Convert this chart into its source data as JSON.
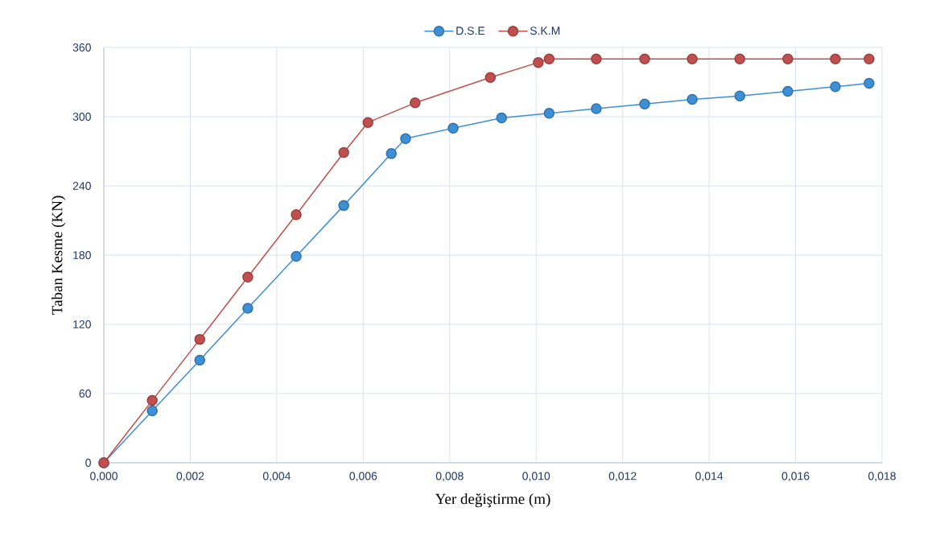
{
  "chart_data": {
    "type": "line",
    "xlabel": "Yer değiştirme (m)",
    "ylabel": "Taban Kesme (KN)",
    "xlim": [
      0,
      0.018
    ],
    "ylim": [
      0,
      360
    ],
    "xticks": [
      {
        "value": 0,
        "label": "0,000"
      },
      {
        "value": 0.002,
        "label": "0,002"
      },
      {
        "value": 0.004,
        "label": "0,004"
      },
      {
        "value": 0.006,
        "label": "0,006"
      },
      {
        "value": 0.008,
        "label": "0,008"
      },
      {
        "value": 0.01,
        "label": "0,010"
      },
      {
        "value": 0.012,
        "label": "0,012"
      },
      {
        "value": 0.014,
        "label": "0,014"
      },
      {
        "value": 0.016,
        "label": "0,016"
      },
      {
        "value": 0.018,
        "label": "0,018"
      }
    ],
    "yticks": [
      0,
      60,
      120,
      180,
      240,
      300,
      360
    ],
    "grid": true,
    "legend": "top",
    "marker": "circle",
    "line_style": "solid",
    "series": [
      {
        "name": "D.S.E",
        "color": "#3d8fd6",
        "x": [
          0,
          0.00112,
          0.00222,
          0.00333,
          0.00445,
          0.00555,
          0.00665,
          0.00698,
          0.00808,
          0.0092,
          0.0103,
          0.01139,
          0.01251,
          0.01361,
          0.01471,
          0.01582,
          0.01692,
          0.0177
        ],
        "values": [
          0,
          45,
          89,
          134,
          179,
          223,
          268,
          281,
          290,
          299,
          303,
          307,
          311,
          315,
          318,
          322,
          326,
          329
        ]
      },
      {
        "name": "S.K.M",
        "color": "#c0504d",
        "x": [
          0,
          0.00112,
          0.00222,
          0.00333,
          0.00445,
          0.00555,
          0.00611,
          0.0072,
          0.00894,
          0.01005,
          0.0103,
          0.01139,
          0.01251,
          0.01361,
          0.01471,
          0.01582,
          0.01692,
          0.0177
        ],
        "values": [
          0,
          54,
          107,
          161,
          215,
          269,
          295,
          312,
          334,
          347,
          350,
          350,
          350,
          350,
          350,
          350,
          350,
          350
        ]
      }
    ]
  }
}
